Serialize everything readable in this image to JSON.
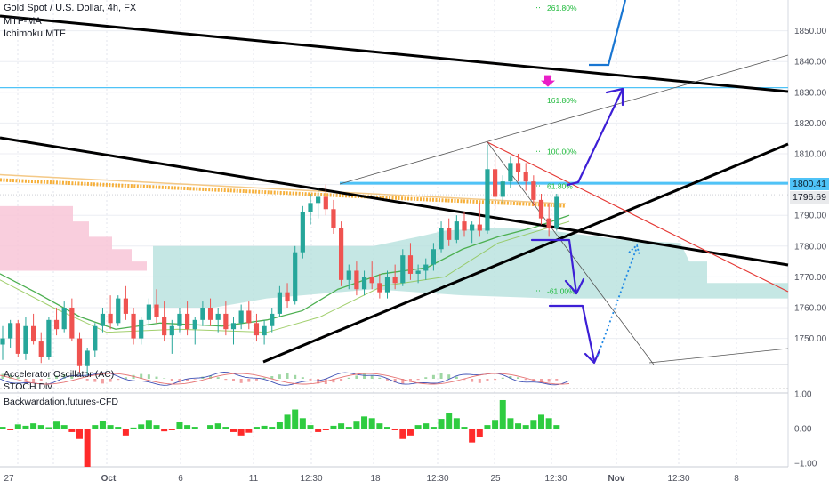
{
  "header": {
    "symbol": "Gold Spot / U.S. Dollar, 4h, FX",
    "indicator1": "MTF-MA",
    "indicator2": "Ichimoku MTF"
  },
  "panes": {
    "oscillator_label": "Accelerator Oscillator (AC)",
    "stoch_label": "STOCH Div",
    "backwardation_label": "Backwardation,futures-CFD"
  },
  "price_tags": {
    "current_line": "1800.41",
    "last_price": "1796.69"
  },
  "colors": {
    "bull": "#26a69a",
    "bear": "#ef5350",
    "arrow": "#3d1fd6",
    "level": "#4fc3f7",
    "fib": "#1db93a",
    "cloud": "#b2dfdb",
    "pink_cloud": "#f8c6d7",
    "ma_orange": "#f5a623",
    "ma_green": "#4caf50",
    "target_marker": "#e91ec7"
  },
  "chart_data": [
    {
      "type": "candlestick",
      "title": "Gold Spot / U.S. Dollar, 4h, FX",
      "x_tick_labels": [
        "27",
        "Oct",
        "6",
        "11",
        "12:30",
        "18",
        "12:30",
        "25",
        "12:30",
        "Nov",
        "12:30",
        "8"
      ],
      "y_ticks": [
        1750,
        1760,
        1770,
        1780,
        1790,
        1800,
        1810,
        1820,
        1830,
        1840,
        1850
      ],
      "ylim": [
        1741.5,
        1860
      ],
      "grid": true,
      "horizontal_levels": [
        1831.5,
        1800.41
      ],
      "last_price": 1796.69,
      "fib_levels": [
        {
          "label": "261.80%",
          "value": 1857.5
        },
        {
          "label": "161.80%",
          "value": 1827.5
        },
        {
          "label": "100.00%",
          "value": 1810.8
        },
        {
          "label": "61.80%",
          "value": 1799.6
        },
        {
          "label": "-61.00%",
          "value": 1765.5
        }
      ],
      "candles": [
        [
          1748,
          1754,
          1743,
          1750
        ],
        [
          1750,
          1756,
          1747,
          1755
        ],
        [
          1755,
          1756,
          1744,
          1745
        ],
        [
          1745,
          1757,
          1743,
          1754
        ],
        [
          1754,
          1758,
          1748,
          1749
        ],
        [
          1749,
          1752,
          1742,
          1744
        ],
        [
          1744,
          1757,
          1743,
          1756
        ],
        [
          1756,
          1760,
          1751,
          1753
        ],
        [
          1753,
          1762,
          1752,
          1760
        ],
        [
          1760,
          1763,
          1749,
          1750
        ],
        [
          1750,
          1752,
          1739,
          1741
        ],
        [
          1741,
          1747,
          1738,
          1746
        ],
        [
          1746,
          1755,
          1744,
          1754
        ],
        [
          1754,
          1760,
          1752,
          1758
        ],
        [
          1758,
          1764,
          1753,
          1755
        ],
        [
          1755,
          1764,
          1754,
          1763
        ],
        [
          1763,
          1767,
          1756,
          1758
        ],
        [
          1758,
          1760,
          1748,
          1750
        ],
        [
          1750,
          1757,
          1748,
          1756
        ],
        [
          1756,
          1763,
          1754,
          1761
        ],
        [
          1761,
          1766,
          1755,
          1757
        ],
        [
          1757,
          1762,
          1749,
          1751
        ],
        [
          1751,
          1756,
          1745,
          1754
        ],
        [
          1754,
          1760,
          1752,
          1758
        ],
        [
          1758,
          1762,
          1751,
          1753
        ],
        [
          1753,
          1757,
          1748,
          1756
        ],
        [
          1756,
          1762,
          1754,
          1760
        ],
        [
          1760,
          1763,
          1754,
          1756
        ],
        [
          1756,
          1760,
          1752,
          1758
        ],
        [
          1758,
          1762,
          1751,
          1753
        ],
        [
          1753,
          1757,
          1748,
          1755
        ],
        [
          1755,
          1761,
          1753,
          1759
        ],
        [
          1759,
          1762,
          1753,
          1755
        ],
        [
          1755,
          1758,
          1749,
          1751
        ],
        [
          1751,
          1756,
          1748,
          1754
        ],
        [
          1754,
          1760,
          1752,
          1758
        ],
        [
          1758,
          1767,
          1757,
          1765
        ],
        [
          1765,
          1768,
          1760,
          1762
        ],
        [
          1762,
          1780,
          1761,
          1778
        ],
        [
          1778,
          1793,
          1776,
          1791
        ],
        [
          1791,
          1797,
          1787,
          1794
        ],
        [
          1794,
          1799,
          1789,
          1796
        ],
        [
          1796,
          1800,
          1790,
          1792
        ],
        [
          1792,
          1795,
          1784,
          1786
        ],
        [
          1786,
          1788,
          1767,
          1769
        ],
        [
          1769,
          1774,
          1766,
          1772
        ],
        [
          1772,
          1775,
          1764,
          1766
        ],
        [
          1766,
          1772,
          1764,
          1770
        ],
        [
          1770,
          1775,
          1766,
          1768
        ],
        [
          1768,
          1771,
          1763,
          1765
        ],
        [
          1765,
          1772,
          1763,
          1770
        ],
        [
          1770,
          1774,
          1766,
          1768
        ],
        [
          1768,
          1779,
          1767,
          1777
        ],
        [
          1777,
          1781,
          1769,
          1771
        ],
        [
          1771,
          1774,
          1768,
          1772
        ],
        [
          1772,
          1776,
          1769,
          1774
        ],
        [
          1774,
          1781,
          1772,
          1779
        ],
        [
          1779,
          1788,
          1778,
          1786
        ],
        [
          1786,
          1789,
          1780,
          1782
        ],
        [
          1782,
          1790,
          1781,
          1788
        ],
        [
          1788,
          1791,
          1783,
          1785
        ],
        [
          1785,
          1788,
          1781,
          1787
        ],
        [
          1787,
          1794,
          1783,
          1785
        ],
        [
          1785,
          1813,
          1784,
          1805
        ],
        [
          1805,
          1809,
          1792,
          1796
        ],
        [
          1796,
          1803,
          1794,
          1801
        ],
        [
          1801,
          1809,
          1799,
          1807
        ],
        [
          1807,
          1810,
          1801,
          1804
        ],
        [
          1804,
          1807,
          1798,
          1801
        ],
        [
          1801,
          1803,
          1793,
          1795
        ],
        [
          1795,
          1797,
          1787,
          1789
        ],
        [
          1789,
          1794,
          1783,
          1786
        ],
        [
          1786,
          1797,
          1785,
          1796
        ]
      ]
    },
    {
      "type": "bar",
      "title": "Accelerator Oscillator (AC)",
      "values": [
        0.9,
        0.7,
        0.3,
        -0.4,
        -0.8,
        -0.5,
        0.2,
        0.6,
        0.8,
        0.5,
        0.1,
        -0.3,
        -0.6,
        -0.9,
        -0.6,
        -0.2,
        0.3,
        0.7,
        0.9,
        0.8,
        0.4,
        0.1,
        -0.4,
        -0.7,
        -0.5,
        -0.1,
        0.4,
        0.6,
        0.3,
        -0.2,
        -0.5,
        -0.8,
        -0.6,
        -0.3,
        0.2,
        0.5,
        0.8,
        1.0,
        0.7,
        0.3,
        -0.3,
        -0.9,
        -1.0,
        -0.7,
        -0.4,
        0.2,
        0.6,
        0.9,
        0.6,
        0.2,
        -0.3,
        -0.7,
        -0.9,
        -0.6,
        -0.2,
        0.3,
        0.7,
        1.0,
        0.8,
        0.4,
        -0.2,
        -0.6,
        -0.8,
        -0.5,
        -0.2,
        0.2,
        0.5,
        0.3,
        -0.2,
        -0.5,
        -0.7,
        -0.6,
        -0.3
      ]
    },
    {
      "type": "bar",
      "title": "Backwardation,futures-CFD",
      "y_ticks": [
        1.0,
        0.0,
        -1.0
      ],
      "y_tick_labels": [
        "1.00",
        "0.00",
        "−1.00"
      ],
      "ylim": [
        -1.1,
        1.05
      ],
      "values": [
        0.05,
        -0.05,
        0.12,
        0.08,
        0.15,
        0.1,
        0.04,
        0.2,
        0.1,
        -0.1,
        -0.3,
        -1.1,
        0.1,
        0.22,
        0.1,
        0.05,
        -0.2,
        0.03,
        0.12,
        0.25,
        0.1,
        -0.08,
        -0.05,
        0.18,
        0.1,
        0.05,
        -0.02,
        0.1,
        0.15,
        0.05,
        -0.1,
        -0.2,
        -0.12,
        0.05,
        0.08,
        0.05,
        0.18,
        0.4,
        0.55,
        0.3,
        0.1,
        -0.1,
        -0.05,
        0.08,
        0.15,
        0.05,
        0.2,
        0.35,
        0.3,
        0.15,
        0.05,
        -0.05,
        -0.3,
        -0.2,
        0.1,
        0.15,
        0.05,
        0.28,
        0.45,
        0.3,
        0.05,
        -0.4,
        -0.25,
        0.1,
        0.25,
        0.82,
        0.3,
        0.15,
        0.1,
        0.25,
        0.4,
        0.3,
        0.1
      ]
    }
  ]
}
